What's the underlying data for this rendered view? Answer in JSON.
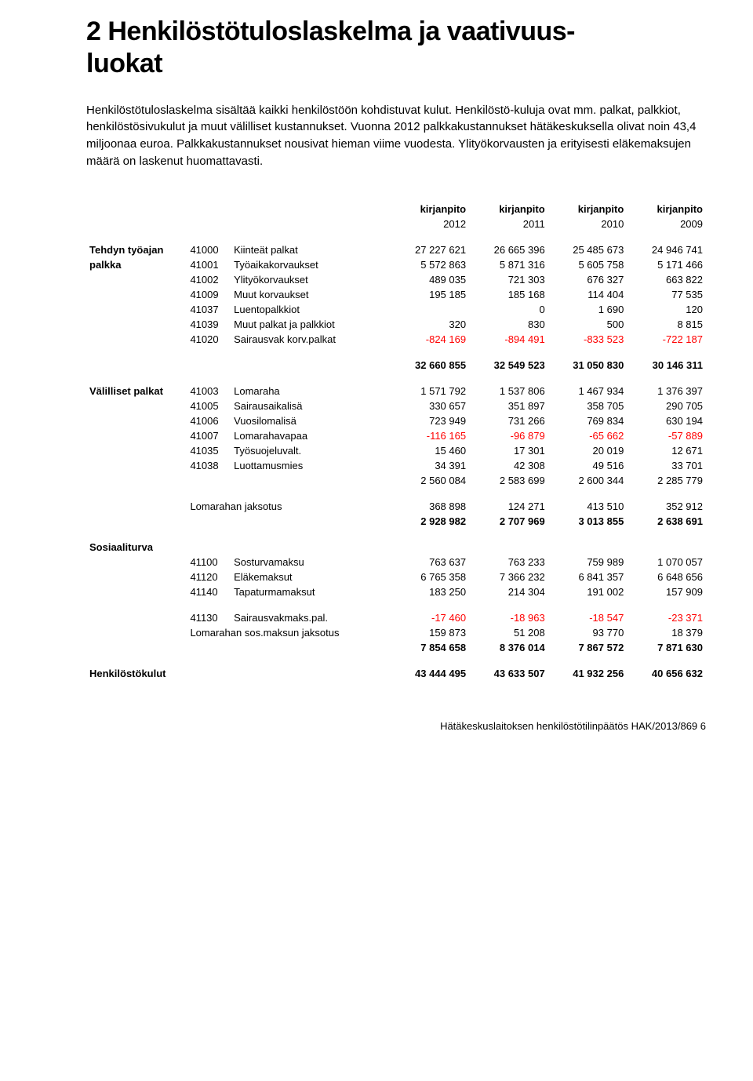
{
  "title_line1": "2 Henkilöstötuloslaskelma ja vaativuus-",
  "title_line2": "luokat",
  "intro_text": "Henkilöstötuloslaskelma sisältää kaikki henkilöstöön kohdistuvat kulut. Henkilöstö-kuluja ovat mm. palkat, palkkiot, henkilöstösivukulut ja muut välilliset kustannukset. Vuonna 2012 palkkakustannukset hätäkeskuksella olivat noin 43,4 miljoonaa euroa. Palkkakustannukset nousivat hieman viime vuodesta. Ylityökorvausten ja erityisesti eläkemaksujen määrä on laskenut huomattavasti.",
  "col_header": "kirjanpito",
  "years": [
    "2012",
    "2011",
    "2010",
    "2009"
  ],
  "groups": [
    {
      "name": "Tehdyn työajan palkka",
      "name_lines": [
        "Tehdyn työajan",
        "palkka"
      ],
      "rows": [
        {
          "code": "41000",
          "label": "Kiinteät palkat",
          "vals": [
            "27 227 621",
            "26 665 396",
            "25 485 673",
            "24 946 741"
          ],
          "neg": [
            false,
            false,
            false,
            false
          ]
        },
        {
          "code": "41001",
          "label": "Työaikakorvaukset",
          "vals": [
            "5 572 863",
            "5 871 316",
            "5 605 758",
            "5 171 466"
          ],
          "neg": [
            false,
            false,
            false,
            false
          ]
        },
        {
          "code": "41002",
          "label": "Ylityökorvaukset",
          "vals": [
            "489 035",
            "721 303",
            "676 327",
            "663 822"
          ],
          "neg": [
            false,
            false,
            false,
            false
          ]
        },
        {
          "code": "41009",
          "label": "Muut korvaukset",
          "vals": [
            "195 185",
            "185 168",
            "114 404",
            "77 535"
          ],
          "neg": [
            false,
            false,
            false,
            false
          ]
        },
        {
          "code": "41037",
          "label": "Luentopalkkiot",
          "vals": [
            "",
            "0",
            "1 690",
            "120"
          ],
          "neg": [
            false,
            false,
            false,
            false
          ]
        },
        {
          "code": "41039",
          "label": "Muut palkat ja palkkiot",
          "vals": [
            "320",
            "830",
            "500",
            "8 815"
          ],
          "neg": [
            false,
            false,
            false,
            false
          ]
        },
        {
          "code": "41020",
          "label": "Sairausvak korv.palkat",
          "vals": [
            "-824 169",
            "-894 491",
            "-833 523",
            "-722 187"
          ],
          "neg": [
            true,
            true,
            true,
            true
          ]
        }
      ],
      "subtotal": {
        "vals": [
          "32 660 855",
          "32 549 523",
          "31 050 830",
          "30 146 311"
        ],
        "bold": true
      }
    },
    {
      "name": "Välilliset palkat",
      "name_lines": [
        "Välilliset palkat"
      ],
      "rows": [
        {
          "code": "41003",
          "label": "Lomaraha",
          "vals": [
            "1 571 792",
            "1 537 806",
            "1 467 934",
            "1 376 397"
          ],
          "neg": [
            false,
            false,
            false,
            false
          ]
        },
        {
          "code": "41005",
          "label": "Sairausaikalisä",
          "vals": [
            "330 657",
            "351 897",
            "358 705",
            "290 705"
          ],
          "neg": [
            false,
            false,
            false,
            false
          ]
        },
        {
          "code": "41006",
          "label": "Vuosilomalisä",
          "vals": [
            "723 949",
            "731 266",
            "769 834",
            "630 194"
          ],
          "neg": [
            false,
            false,
            false,
            false
          ]
        },
        {
          "code": "41007",
          "label": "Lomarahavapaa",
          "vals": [
            "-116 165",
            "-96 879",
            "-65 662",
            "-57 889"
          ],
          "neg": [
            true,
            true,
            true,
            true
          ]
        },
        {
          "code": "41035",
          "label": "Työsuojeluvalt.",
          "vals": [
            "15 460",
            "17 301",
            "20 019",
            "12 671"
          ],
          "neg": [
            false,
            false,
            false,
            false
          ]
        },
        {
          "code": "41038",
          "label": "Luottamusmies",
          "vals": [
            "34 391",
            "42 308",
            "49 516",
            "33 701"
          ],
          "neg": [
            false,
            false,
            false,
            false
          ]
        }
      ],
      "inline_total": {
        "vals": [
          "2 560 084",
          "2 583 699",
          "2 600 344",
          "2 285 779"
        ]
      },
      "sub_rows": [
        {
          "label": "Lomarahan jaksotus",
          "vals": [
            "368 898",
            "124 271",
            "413 510",
            "352 912"
          ],
          "neg": [
            false,
            false,
            false,
            false
          ]
        }
      ],
      "subtotal": {
        "vals": [
          "2 928 982",
          "2 707 969",
          "3 013 855",
          "2 638 691"
        ],
        "bold": true
      }
    },
    {
      "name": "Sosiaaliturva",
      "name_lines": [
        "Sosiaaliturva"
      ],
      "standalone_header": true,
      "rows": [
        {
          "code": "41100",
          "label": "Sosturvamaksu",
          "vals": [
            "763 637",
            "763 233",
            "759 989",
            "1 070 057"
          ],
          "neg": [
            false,
            false,
            false,
            false
          ]
        },
        {
          "code": "41120",
          "label": "Eläkemaksut",
          "vals": [
            "6 765 358",
            "7 366 232",
            "6 841 357",
            "6 648 656"
          ],
          "neg": [
            false,
            false,
            false,
            false
          ]
        },
        {
          "code": "41140",
          "label": "Tapaturmamaksut",
          "vals": [
            "183 250",
            "214 304",
            "191 002",
            "157 909"
          ],
          "neg": [
            false,
            false,
            false,
            false
          ]
        }
      ],
      "gap_rows": [
        {
          "code": "41130",
          "label": "Sairausvakmaks.pal.",
          "vals": [
            "-17 460",
            "-18 963",
            "-18 547",
            "-23 371"
          ],
          "neg": [
            true,
            true,
            true,
            true
          ]
        },
        {
          "code": "",
          "label": "Lomarahan sos.maksun jaksotus",
          "vals": [
            "159 873",
            "51 208",
            "93 770",
            "18 379"
          ],
          "neg": [
            false,
            false,
            false,
            false
          ],
          "wide_label": true
        }
      ],
      "subtotal": {
        "vals": [
          "7 854 658",
          "8 376 014",
          "7 867 572",
          "7 871 630"
        ],
        "bold": true
      }
    }
  ],
  "grand_total": {
    "label": "Henkilöstökulut",
    "vals": [
      "43 444 495",
      "43 633 507",
      "41 932 256",
      "40 656 632"
    ]
  },
  "footer": "Hätäkeskuslaitoksen henkilöstötilinpäätös HAK/2013/869  6",
  "neg_color": "#ff0000",
  "font_sizes": {
    "h1": 34,
    "intro": 15,
    "table": 13,
    "footer": 13
  }
}
